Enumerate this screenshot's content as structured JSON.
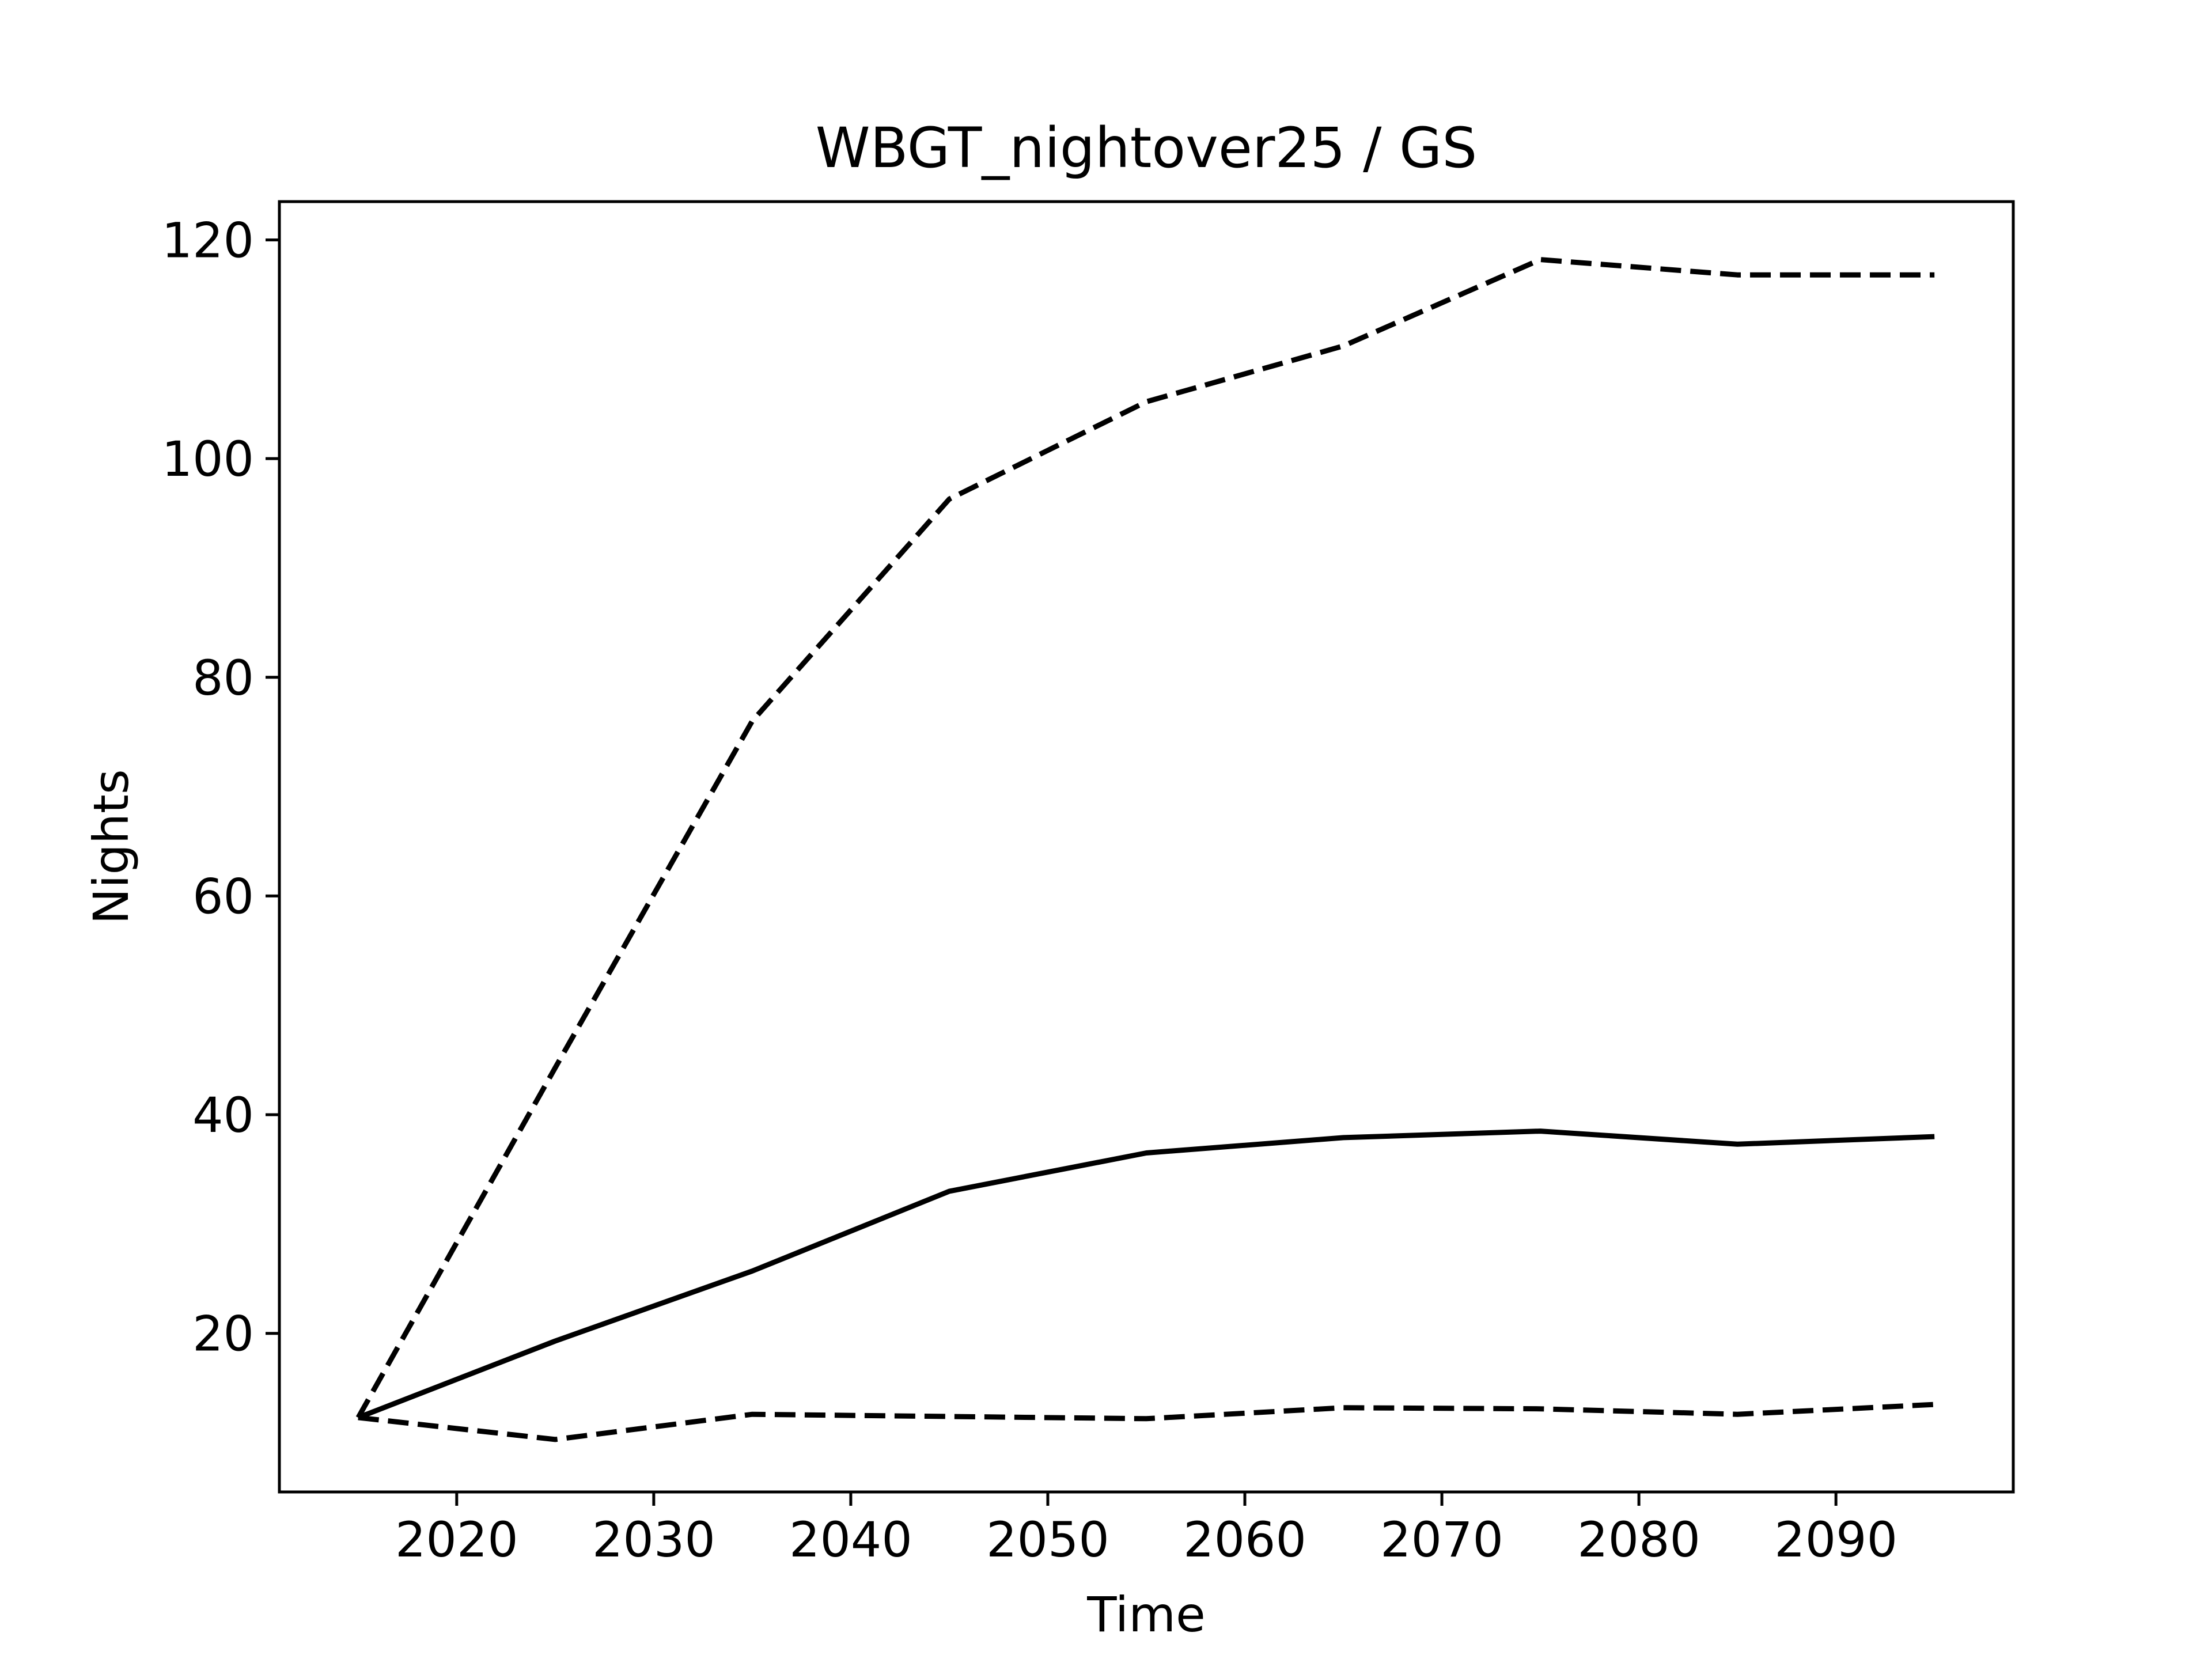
{
  "chart_data": {
    "type": "line",
    "title": "WBGT_nightover25 / GS",
    "xlabel": "Time",
    "ylabel": "Nights",
    "xlim": [
      2011,
      2099
    ],
    "ylim": [
      5.5,
      123.5
    ],
    "xticks": [
      2020,
      2030,
      2040,
      2050,
      2060,
      2070,
      2080,
      2090
    ],
    "yticks": [
      20,
      40,
      60,
      80,
      100,
      120
    ],
    "grid": false,
    "legend": "none",
    "x": [
      2015,
      2025,
      2035,
      2045,
      2055,
      2065,
      2075,
      2085,
      2095
    ],
    "series": [
      {
        "style": "solid",
        "color": "#000000",
        "values": [
          12.3,
          19.3,
          25.7,
          33.0,
          36.5,
          37.9,
          38.5,
          37.3,
          38.0
        ]
      },
      {
        "style": "dashed",
        "color": "#000000",
        "values": [
          12.3,
          44.3,
          76.0,
          96.3,
          105.2,
          110.3,
          118.2,
          116.8,
          116.8
        ]
      },
      {
        "style": "dashed",
        "color": "#000000",
        "values": [
          12.3,
          10.3,
          12.6,
          12.4,
          12.2,
          13.2,
          13.1,
          12.6,
          13.5
        ]
      }
    ]
  }
}
